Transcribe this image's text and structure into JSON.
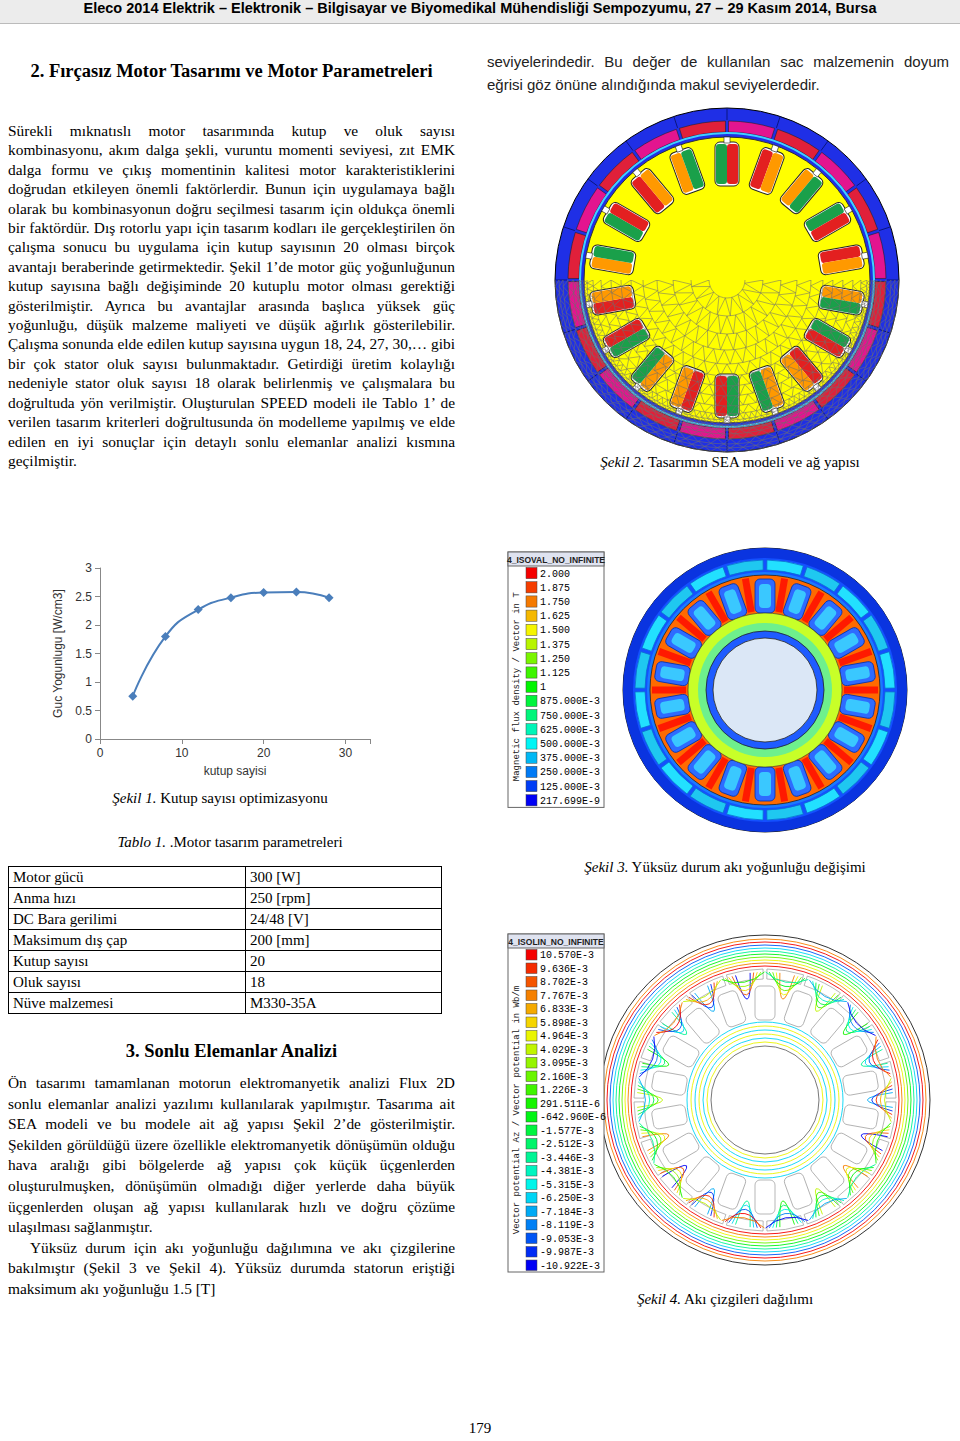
{
  "header": "Eleco 2014 Elektrik – Elektronik – Bilgisayar ve Biyomedikal Mühendisliği Sempozyumu, 27 – 29 Kasım 2014, Bursa",
  "section2": {
    "title": "2. Fırçasız Motor Tasarımı ve Motor Parametreleri",
    "paragraph": "Sürekli mıknatıslı motor tasarımında kutup ve oluk sayısı kombinasyonu, akım dalga şekli, vuruntu momenti seviyesi, zıt EMK dalga formu ve çıkış momentinin kalitesi motor karakteristiklerini doğrudan etkileyen önemli faktörlerdir. Bunun için uygulamaya bağlı olarak bu kombinasyonun doğru seçilmesi tasarım için oldukça önemli bir faktördür. Dış rotorlu yapı için tasarım kodları ile gerçekleştirilen ön çalışma sonucu bu uygulama için kutup sayısının 20 olması birçok avantajı beraberinde getirmektedir. Şekil 1’de motor güç yoğunluğunun kutup sayısına bağlı değişiminde 20 kutuplu motor olması gerektiği gösterilmiştir. Ayrıca bu avantajlar arasında başlıca yüksek güç yoğunluğu, düşük malzeme maliyeti ve düşük ağırlık gösterilebilir. Çalışma sonunda elde edilen kutup sayısına uygun 18, 24, 27, 30,… gibi bir çok stator oluk sayısı bulunmaktadır. Getirdiği üretim kolaylığı nedeniyle stator oluk sayısı 18 olarak belirlenmiş ve çalışmalara bu doğrultuda yön verilmiştir. Oluşturulan SPEED modeli ile Tablo 1’ de verilen tasarım kriterleri doğrultusunda ön modelleme yapılmış ve elde edilen en iyi sonuçlar için detaylı sonlu elemanlar analizi kısmına geçilmiştir."
  },
  "right_top_text": "seviyelerindedir. Bu değer de kullanılan sac malzemenin doyum eğrisi göz önüne alındığında makul seviyelerdedir.",
  "chart_data": {
    "type": "line",
    "x_label": "kutup sayisi",
    "y_label": "Guc Yogunlugu [W/cm3]",
    "x": [
      4,
      8,
      12,
      16,
      20,
      24,
      28
    ],
    "values": [
      0.75,
      1.8,
      2.27,
      2.48,
      2.57,
      2.58,
      2.48
    ],
    "color": "#4a7ebb",
    "marker": "diamond",
    "line_style": "smooth",
    "xlim": [
      0,
      33
    ],
    "xticks": [
      0,
      10,
      20,
      30
    ],
    "ylim": [
      0,
      3
    ],
    "yticks": [
      0,
      0.5,
      1,
      1.5,
      2,
      2.5,
      3
    ],
    "grid": false
  },
  "figure1_caption": {
    "label": "Şekil 1.",
    "text": "Kutup sayısı optimizasyonu"
  },
  "table": {
    "caption": {
      "label": "Tablo 1.",
      "text": ".Motor tasarım parametreleri"
    },
    "rows": [
      [
        "Motor gücü",
        "300 [W]"
      ],
      [
        "Anma hızı",
        "250 [rpm]"
      ],
      [
        "DC Bara gerilimi",
        "24/48 [V]"
      ],
      [
        "Maksimum dış çap",
        "200 [mm]"
      ],
      [
        "Kutup sayısı",
        "20"
      ],
      [
        "Oluk sayısı",
        "18"
      ],
      [
        "Nüve malzemesi",
        "M330-35A"
      ]
    ]
  },
  "section3": {
    "title": "3. Sonlu Elemanlar Analizi",
    "paragraphs": [
      "Ön tasarımı tamamlanan motorun elektromanyetik analizi Flux 2D sonlu elemanlar analizi yazılımı kullanılarak yapılmıştır. Tasarıma ait SEA modeli ve bu modele ait ağ yapısı Şekil 2’de gösterilmiştir. Şekilden görüldüğü üzere özellikle elektromanyetik dönüşümün olduğu hava aralığı gibi bölgelerde ağ yapısı çok küçük üçgenlerden oluşturulmuşken, dönüşümün olmadığı diğer yerlerde daha büyük üçgenlerden oluşan ağ yapısı kullanılarak hızlı ve doğru çözüme ulaşılması sağlanmıştır.",
      "Yüksüz durum için akı yoğunluğu dağılımına ve akı çizgilerine bakılmıştır (Şekil 3 ve Şekil 4). Yüksüz durumda statorun eriştiği maksimum akı yoğunluğu 1.5 [T]"
    ]
  },
  "figure2_caption": {
    "label": "Şekil 2.",
    "text": "Tasarımın SEA modeli ve ağ yapısı"
  },
  "figure3": {
    "legend_title": "4_ISOVAL_NO_INFINITE",
    "legend_axis": "Magnetic flux density / Vector in T",
    "legend_values": [
      "2.000",
      "1.875",
      "1.750",
      "1.625",
      "1.500",
      "1.375",
      "1.250",
      "1.125",
      "1",
      "875.000E-3",
      "750.000E-3",
      "625.000E-3",
      "500.000E-3",
      "375.000E-3",
      "250.000E-3",
      "125.000E-3",
      "217.699E-9"
    ],
    "caption": {
      "label": "Şekil 3.",
      "text": "Yüksüz durum akı yoğunluğu değişimi"
    }
  },
  "figure4": {
    "legend_title": "4_ISOLIN_NO_INFINITE",
    "legend_axis": "Vector potential Az / Vector potential in Wb/m",
    "legend_values": [
      "10.570E-3",
      "9.636E-3",
      "8.702E-3",
      "7.767E-3",
      "6.833E-3",
      "5.898E-3",
      "4.964E-3",
      "4.029E-3",
      "3.095E-3",
      "2.160E-3",
      "1.226E-3",
      "291.511E-6",
      "-642.960E-6",
      "-1.577E-3",
      "-2.512E-3",
      "-3.446E-3",
      "-4.381E-3",
      "-5.315E-3",
      "-6.250E-3",
      "-7.184E-3",
      "-8.119E-3",
      "-9.053E-3",
      "-9.987E-3",
      "-10.922E-3"
    ],
    "caption": {
      "label": "Şekil 4.",
      "text": "Akı çizgileri dağılımı"
    }
  },
  "page_number": 179
}
